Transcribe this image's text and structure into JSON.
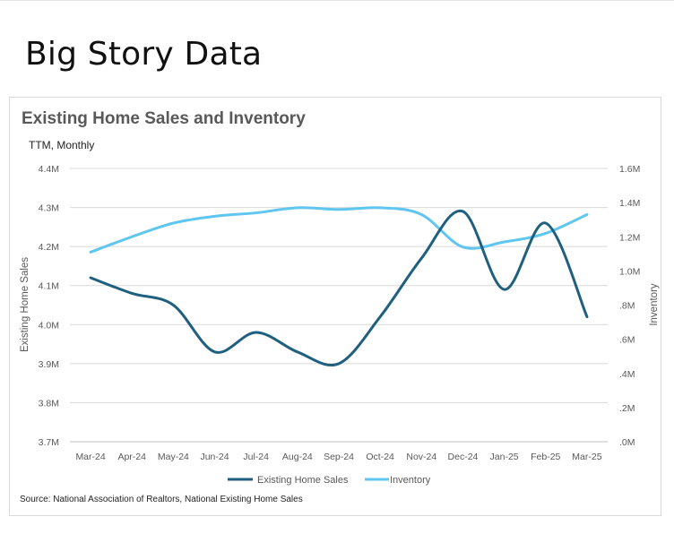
{
  "page": {
    "title": "Big Story Data"
  },
  "chart_data": {
    "type": "line",
    "title": "Existing Home Sales and Inventory",
    "subtitle": "TTM, Monthly",
    "categories": [
      "Mar-24",
      "Apr-24",
      "May-24",
      "Jun-24",
      "Jul-24",
      "Aug-24",
      "Sep-24",
      "Oct-24",
      "Nov-24",
      "Dec-24",
      "Jan-25",
      "Feb-25",
      "Mar-25"
    ],
    "series": [
      {
        "name": "Existing Home Sales",
        "axis": "left",
        "color": "#1f5f7f",
        "values": [
          4.12,
          4.08,
          4.05,
          3.93,
          3.98,
          3.93,
          3.9,
          4.02,
          4.17,
          4.29,
          4.09,
          4.26,
          4.02
        ]
      },
      {
        "name": "Inventory",
        "axis": "right",
        "color": "#5ec6ef",
        "values": [
          1.11,
          1.2,
          1.28,
          1.32,
          1.34,
          1.37,
          1.36,
          1.37,
          1.33,
          1.14,
          1.17,
          1.22,
          1.33
        ]
      }
    ],
    "y_left": {
      "label": "Existing Home Sales",
      "min": 3.7,
      "max": 4.4,
      "ticks": [
        4.4,
        4.3,
        4.2,
        4.1,
        4.0,
        3.9,
        3.8,
        3.7
      ],
      "tick_labels": [
        "4.4M",
        "4.3M",
        "4.2M",
        "4.1M",
        "4.0M",
        "3.9M",
        "3.8M",
        "3.7M"
      ]
    },
    "y_right": {
      "label": "Inventory",
      "min": 0,
      "max": 1.6,
      "ticks": [
        1.6,
        1.4,
        1.2,
        1.0,
        0.8,
        0.6,
        0.4,
        0.2,
        0.0
      ],
      "tick_labels": [
        "1.6M",
        "1.4M",
        "1.2M",
        "1.0M",
        ".8M",
        ".6M",
        ".4M",
        ".2M",
        ".0M"
      ]
    },
    "grid": true,
    "legend_position": "bottom",
    "source": "Source: National Association of Realtors, National Existing Home Sales"
  }
}
